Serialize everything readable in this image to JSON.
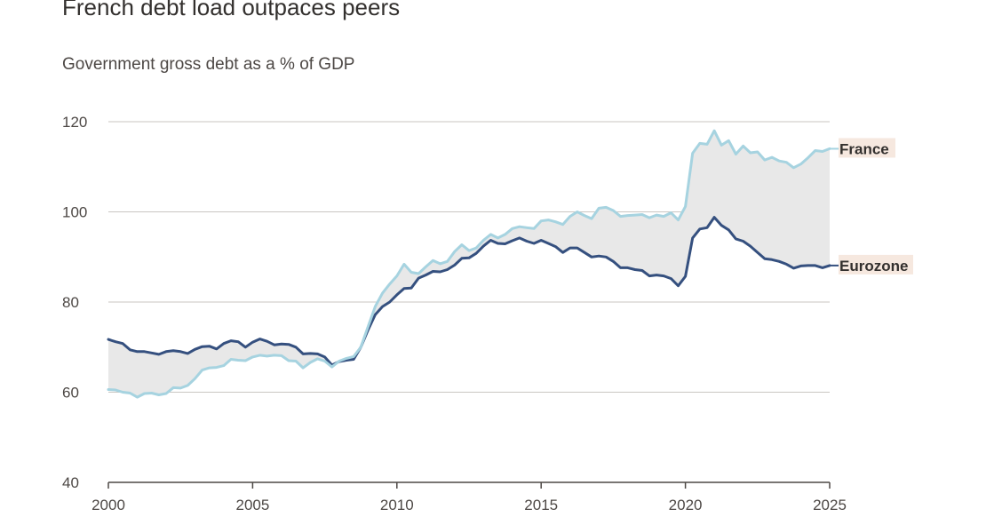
{
  "title": "French debt load outpaces peers",
  "subtitle": "Government gross debt as a % of GDP",
  "colors": {
    "France": "#a6d3e0",
    "Eurozone": "#35507f",
    "fill": "#e8e8e8",
    "grid": "#c9c6c2",
    "label_bg": "#f6e8df"
  },
  "chart_data": {
    "type": "line",
    "title": "French debt load outpaces peers",
    "subtitle": "Government gross debt as a % of GDP",
    "xlabel": "",
    "ylabel": "",
    "xlim": [
      2000,
      2025
    ],
    "ylim": [
      40,
      120
    ],
    "x_ticks": [
      2000,
      2005,
      2010,
      2015,
      2020,
      2025
    ],
    "y_ticks": [
      40,
      60,
      80,
      100,
      120
    ],
    "grid": "horizontal",
    "legend": "direct labels at right end of lines",
    "shaded_area_between_series": true,
    "x": [
      2000.0,
      2000.25,
      2000.5,
      2000.75,
      2001.0,
      2001.25,
      2001.5,
      2001.75,
      2002.0,
      2002.25,
      2002.5,
      2002.75,
      2003.0,
      2003.25,
      2003.5,
      2003.75,
      2004.0,
      2004.25,
      2004.5,
      2004.75,
      2005.0,
      2005.25,
      2005.5,
      2005.75,
      2006.0,
      2006.25,
      2006.5,
      2006.75,
      2007.0,
      2007.25,
      2007.5,
      2007.75,
      2008.0,
      2008.25,
      2008.5,
      2008.75,
      2009.0,
      2009.25,
      2009.5,
      2009.75,
      2010.0,
      2010.25,
      2010.5,
      2010.75,
      2011.0,
      2011.25,
      2011.5,
      2011.75,
      2012.0,
      2012.25,
      2012.5,
      2012.75,
      2013.0,
      2013.25,
      2013.5,
      2013.75,
      2014.0,
      2014.25,
      2014.5,
      2014.75,
      2015.0,
      2015.25,
      2015.5,
      2015.75,
      2016.0,
      2016.25,
      2016.5,
      2016.75,
      2017.0,
      2017.25,
      2017.5,
      2017.75,
      2018.0,
      2018.25,
      2018.5,
      2018.75,
      2019.0,
      2019.25,
      2019.5,
      2019.75,
      2020.0,
      2020.25,
      2020.5,
      2020.75,
      2021.0,
      2021.25,
      2021.5,
      2021.75,
      2022.0,
      2022.25,
      2022.5,
      2022.75,
      2023.0,
      2023.25,
      2023.5,
      2023.75,
      2024.0,
      2024.25,
      2024.5,
      2024.75,
      2025.0
    ],
    "series": [
      {
        "name": "France",
        "values": [
          60.6,
          60.5,
          60.0,
          59.8,
          58.9,
          59.7,
          59.8,
          59.4,
          59.7,
          61.0,
          60.9,
          61.5,
          63.0,
          64.9,
          65.4,
          65.5,
          65.9,
          67.3,
          67.1,
          67.0,
          67.8,
          68.2,
          68.0,
          68.2,
          68.1,
          67.0,
          66.9,
          65.4,
          66.6,
          67.4,
          66.9,
          65.6,
          66.9,
          67.5,
          67.9,
          70.0,
          74.5,
          79.0,
          82.0,
          84.0,
          85.8,
          88.4,
          86.6,
          86.3,
          87.8,
          89.2,
          88.5,
          89.0,
          91.2,
          92.7,
          91.4,
          92.0,
          93.7,
          95.0,
          94.2,
          95.0,
          96.3,
          96.7,
          96.5,
          96.3,
          98.0,
          98.2,
          97.8,
          97.2,
          99.0,
          100.0,
          99.2,
          98.5,
          100.8,
          101.0,
          100.3,
          99.0,
          99.2,
          99.3,
          99.4,
          98.7,
          99.3,
          99.0,
          99.8,
          98.2,
          101.2,
          113.0,
          115.2,
          115.0,
          118.0,
          114.8,
          115.8,
          112.8,
          114.6,
          113.1,
          113.3,
          111.5,
          112.1,
          111.3,
          111.0,
          109.8,
          110.6,
          112.0,
          113.6,
          113.4,
          114.0
        ]
      },
      {
        "name": "Eurozone",
        "values": [
          71.7,
          71.2,
          70.8,
          69.4,
          69.0,
          69.0,
          68.7,
          68.4,
          69.0,
          69.2,
          69.0,
          68.6,
          69.5,
          70.1,
          70.2,
          69.6,
          70.8,
          71.4,
          71.2,
          70.0,
          71.1,
          71.8,
          71.3,
          70.5,
          70.7,
          70.6,
          70.0,
          68.5,
          68.6,
          68.5,
          67.8,
          66.0,
          66.8,
          67.1,
          67.3,
          70.0,
          73.8,
          77.2,
          79.0,
          80.0,
          81.6,
          83.0,
          83.1,
          85.3,
          86.0,
          86.8,
          86.7,
          87.2,
          88.2,
          89.7,
          89.8,
          90.8,
          92.4,
          93.7,
          93.0,
          92.9,
          93.6,
          94.2,
          93.5,
          93.0,
          93.7,
          93.0,
          92.3,
          91.0,
          92.0,
          92.0,
          91.0,
          90.0,
          90.2,
          90.0,
          89.0,
          87.6,
          87.6,
          87.2,
          87.0,
          85.8,
          86.0,
          85.8,
          85.2,
          83.6,
          85.7,
          94.2,
          96.2,
          96.5,
          98.8,
          97.0,
          96.0,
          94.0,
          93.5,
          92.4,
          91.0,
          89.6,
          89.4,
          89.0,
          88.4,
          87.5,
          88.0,
          88.1,
          88.1,
          87.6,
          88.1
        ]
      }
    ]
  }
}
